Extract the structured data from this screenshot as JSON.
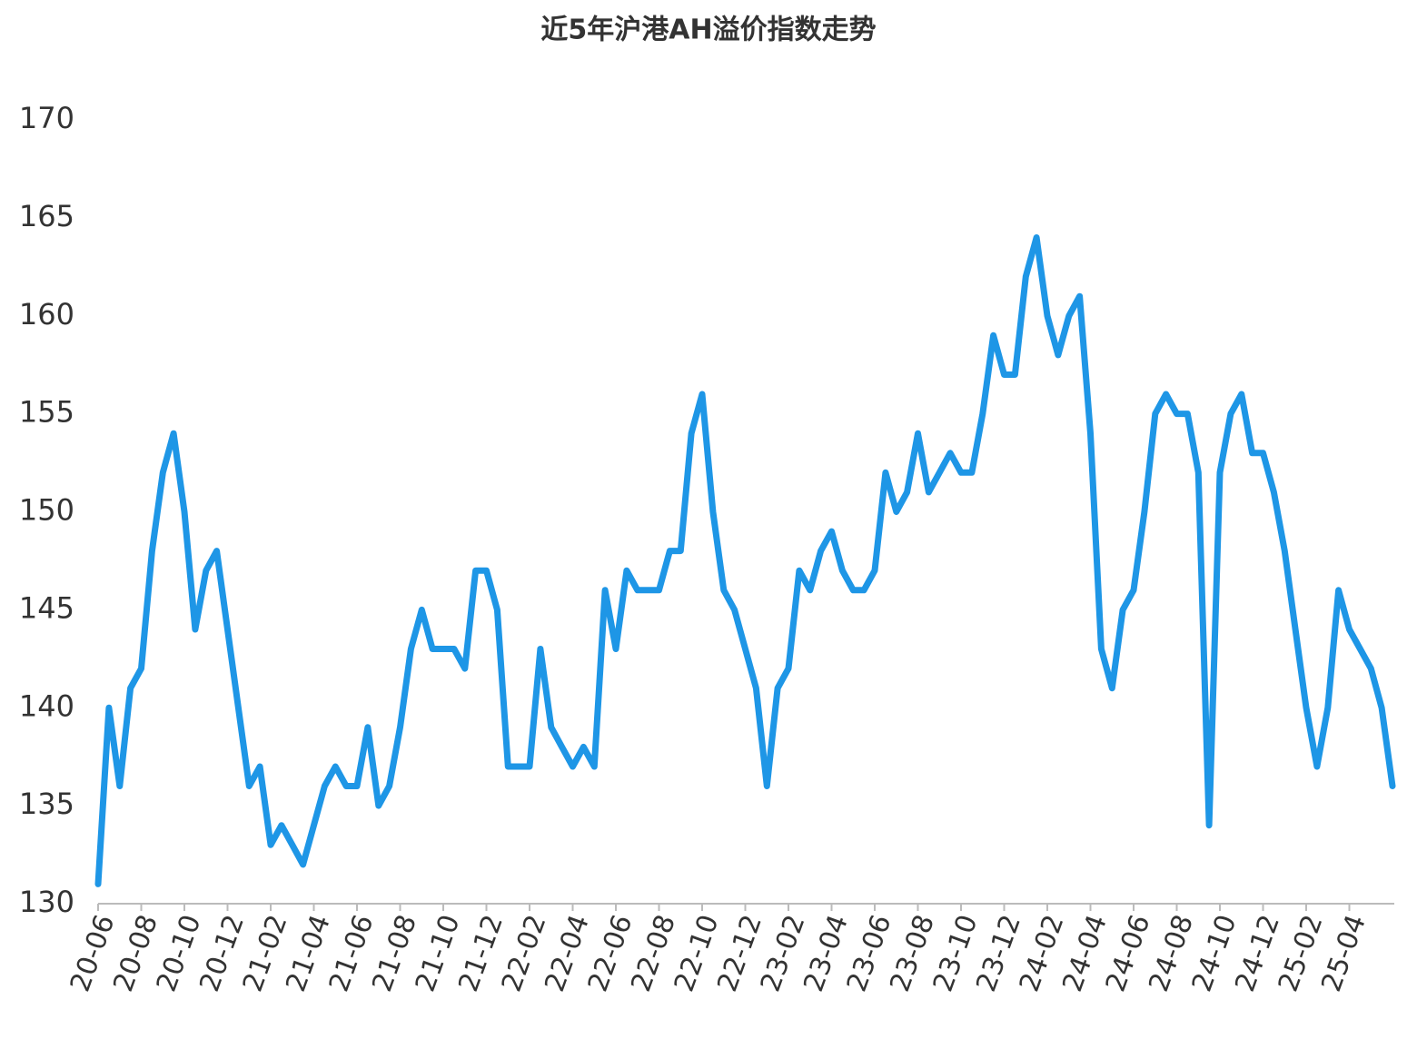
{
  "chart_data": {
    "type": "line",
    "title": "近5年沪港AH溢价指数走势",
    "categories": [
      "20-06",
      null,
      null,
      null,
      "20-08",
      null,
      null,
      null,
      "20-10",
      null,
      null,
      null,
      "20-12",
      null,
      null,
      null,
      "21-02",
      null,
      null,
      null,
      "21-04",
      null,
      null,
      null,
      "21-06",
      null,
      null,
      null,
      "21-08",
      null,
      null,
      null,
      "21-10",
      null,
      null,
      null,
      "21-12",
      null,
      null,
      null,
      "22-02",
      null,
      null,
      null,
      "22-04",
      null,
      null,
      null,
      "22-06",
      null,
      null,
      null,
      "22-08",
      null,
      null,
      null,
      "22-10",
      null,
      null,
      null,
      "22-12",
      null,
      null,
      null,
      "23-02",
      null,
      null,
      null,
      "23-04",
      null,
      null,
      null,
      "23-06",
      null,
      null,
      null,
      "23-08",
      null,
      null,
      null,
      "23-10",
      null,
      null,
      null,
      "23-12",
      null,
      null,
      null,
      "24-02",
      null,
      null,
      null,
      "24-04",
      null,
      null,
      null,
      "24-06",
      null,
      null,
      null,
      "24-08",
      null,
      null,
      null,
      "24-10",
      null,
      null,
      null,
      "24-12",
      null,
      null,
      null,
      "25-02",
      null,
      null,
      null,
      "25-04",
      null,
      null,
      null,
      null
    ],
    "series": [
      {
        "color": "#1e96e6",
        "values": [
          131,
          140,
          136,
          141,
          142,
          148,
          152,
          154,
          150,
          144,
          147,
          148,
          144,
          140,
          136,
          137,
          133,
          134,
          133,
          132,
          134,
          136,
          137,
          136,
          136,
          139,
          135,
          136,
          139,
          143,
          145,
          143,
          143,
          143,
          142,
          147,
          147,
          145,
          137,
          137,
          137,
          143,
          139,
          138,
          137,
          138,
          137,
          146,
          143,
          147,
          146,
          146,
          146,
          148,
          148,
          154,
          156,
          150,
          146,
          145,
          143,
          141,
          136,
          141,
          142,
          147,
          146,
          148,
          149,
          147,
          146,
          146,
          147,
          152,
          150,
          151,
          154,
          151,
          152,
          153,
          152,
          152,
          155,
          159,
          157,
          157,
          162,
          164,
          160,
          158,
          160,
          161,
          154,
          143,
          141,
          145,
          146,
          150,
          155,
          156,
          155,
          155,
          152,
          134,
          152,
          155,
          156,
          153,
          153,
          151,
          148,
          144,
          140,
          137,
          140,
          146,
          144,
          143,
          142,
          140,
          136
        ]
      }
    ],
    "ylim": [
      130,
      170
    ],
    "yticks": [
      130,
      135,
      140,
      145,
      150,
      155,
      160,
      165,
      170
    ],
    "grid": false
  }
}
